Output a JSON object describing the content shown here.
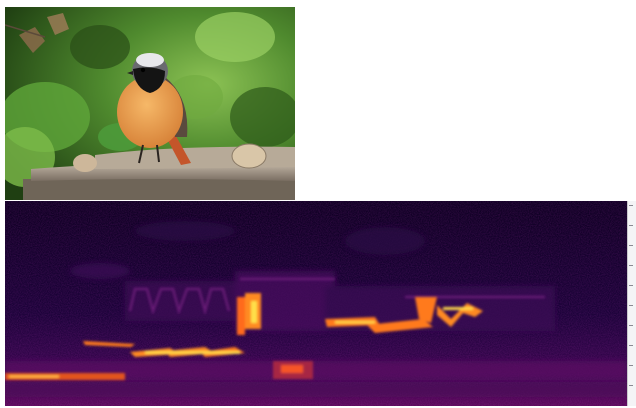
{
  "photo": {
    "subject_icon": "bird-icon",
    "colors": {
      "foliage": "#3c6a26",
      "breast": "#e89a45",
      "crown": "#5a5a5e",
      "mask": "#141414",
      "log": "#a89a88"
    }
  },
  "spectrogram": {
    "colormap": "magma",
    "colors": {
      "background": "#12002a",
      "mid": "#6a0f72",
      "hot": "#ff7a1e",
      "peak": "#ffe04a"
    }
  },
  "scale": {
    "tick_count": 10
  }
}
